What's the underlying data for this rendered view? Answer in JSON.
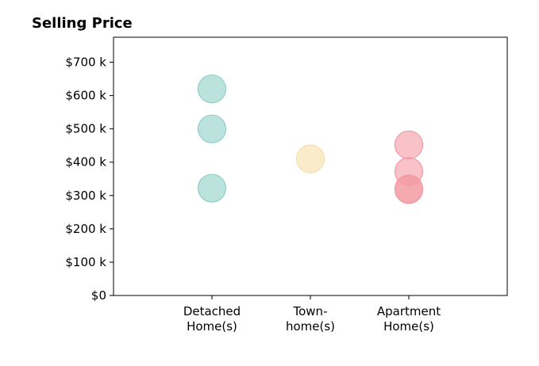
{
  "chart_data": {
    "type": "scatter",
    "title": "Selling Price",
    "xlabel": "",
    "ylabel": "",
    "categories": [
      [
        "Detached",
        "Home(s)"
      ],
      [
        "Town-",
        "home(s)"
      ],
      [
        "Apartment",
        "Home(s)"
      ]
    ],
    "y_ticks": [
      {
        "value": 0,
        "label": "$0"
      },
      {
        "value": 100,
        "label": "$100 k"
      },
      {
        "value": 200,
        "label": "$200 k"
      },
      {
        "value": 300,
        "label": "$300 k"
      },
      {
        "value": 400,
        "label": "$400 k"
      },
      {
        "value": 500,
        "label": "$500 k"
      },
      {
        "value": 600,
        "label": "$600 k"
      },
      {
        "value": 700,
        "label": "$700 k"
      }
    ],
    "xlim": [
      -1,
      3
    ],
    "ylim": [
      0,
      775
    ],
    "grid": false,
    "points": [
      {
        "category_index": 0,
        "value": 620,
        "color": "#8ecfc6"
      },
      {
        "category_index": 0,
        "value": 500,
        "color": "#8ecfc6"
      },
      {
        "category_index": 0,
        "value": 322,
        "color": "#8ecfc6"
      },
      {
        "category_index": 1,
        "value": 410,
        "color": "#f6dfa8"
      },
      {
        "category_index": 2,
        "value": 452,
        "color": "#f39aa4"
      },
      {
        "category_index": 2,
        "value": 372,
        "color": "#f39aa4"
      },
      {
        "category_index": 2,
        "value": 320,
        "color": "#f39aa4"
      },
      {
        "category_index": 2,
        "value": 318,
        "color": "#f39aa4"
      }
    ]
  }
}
